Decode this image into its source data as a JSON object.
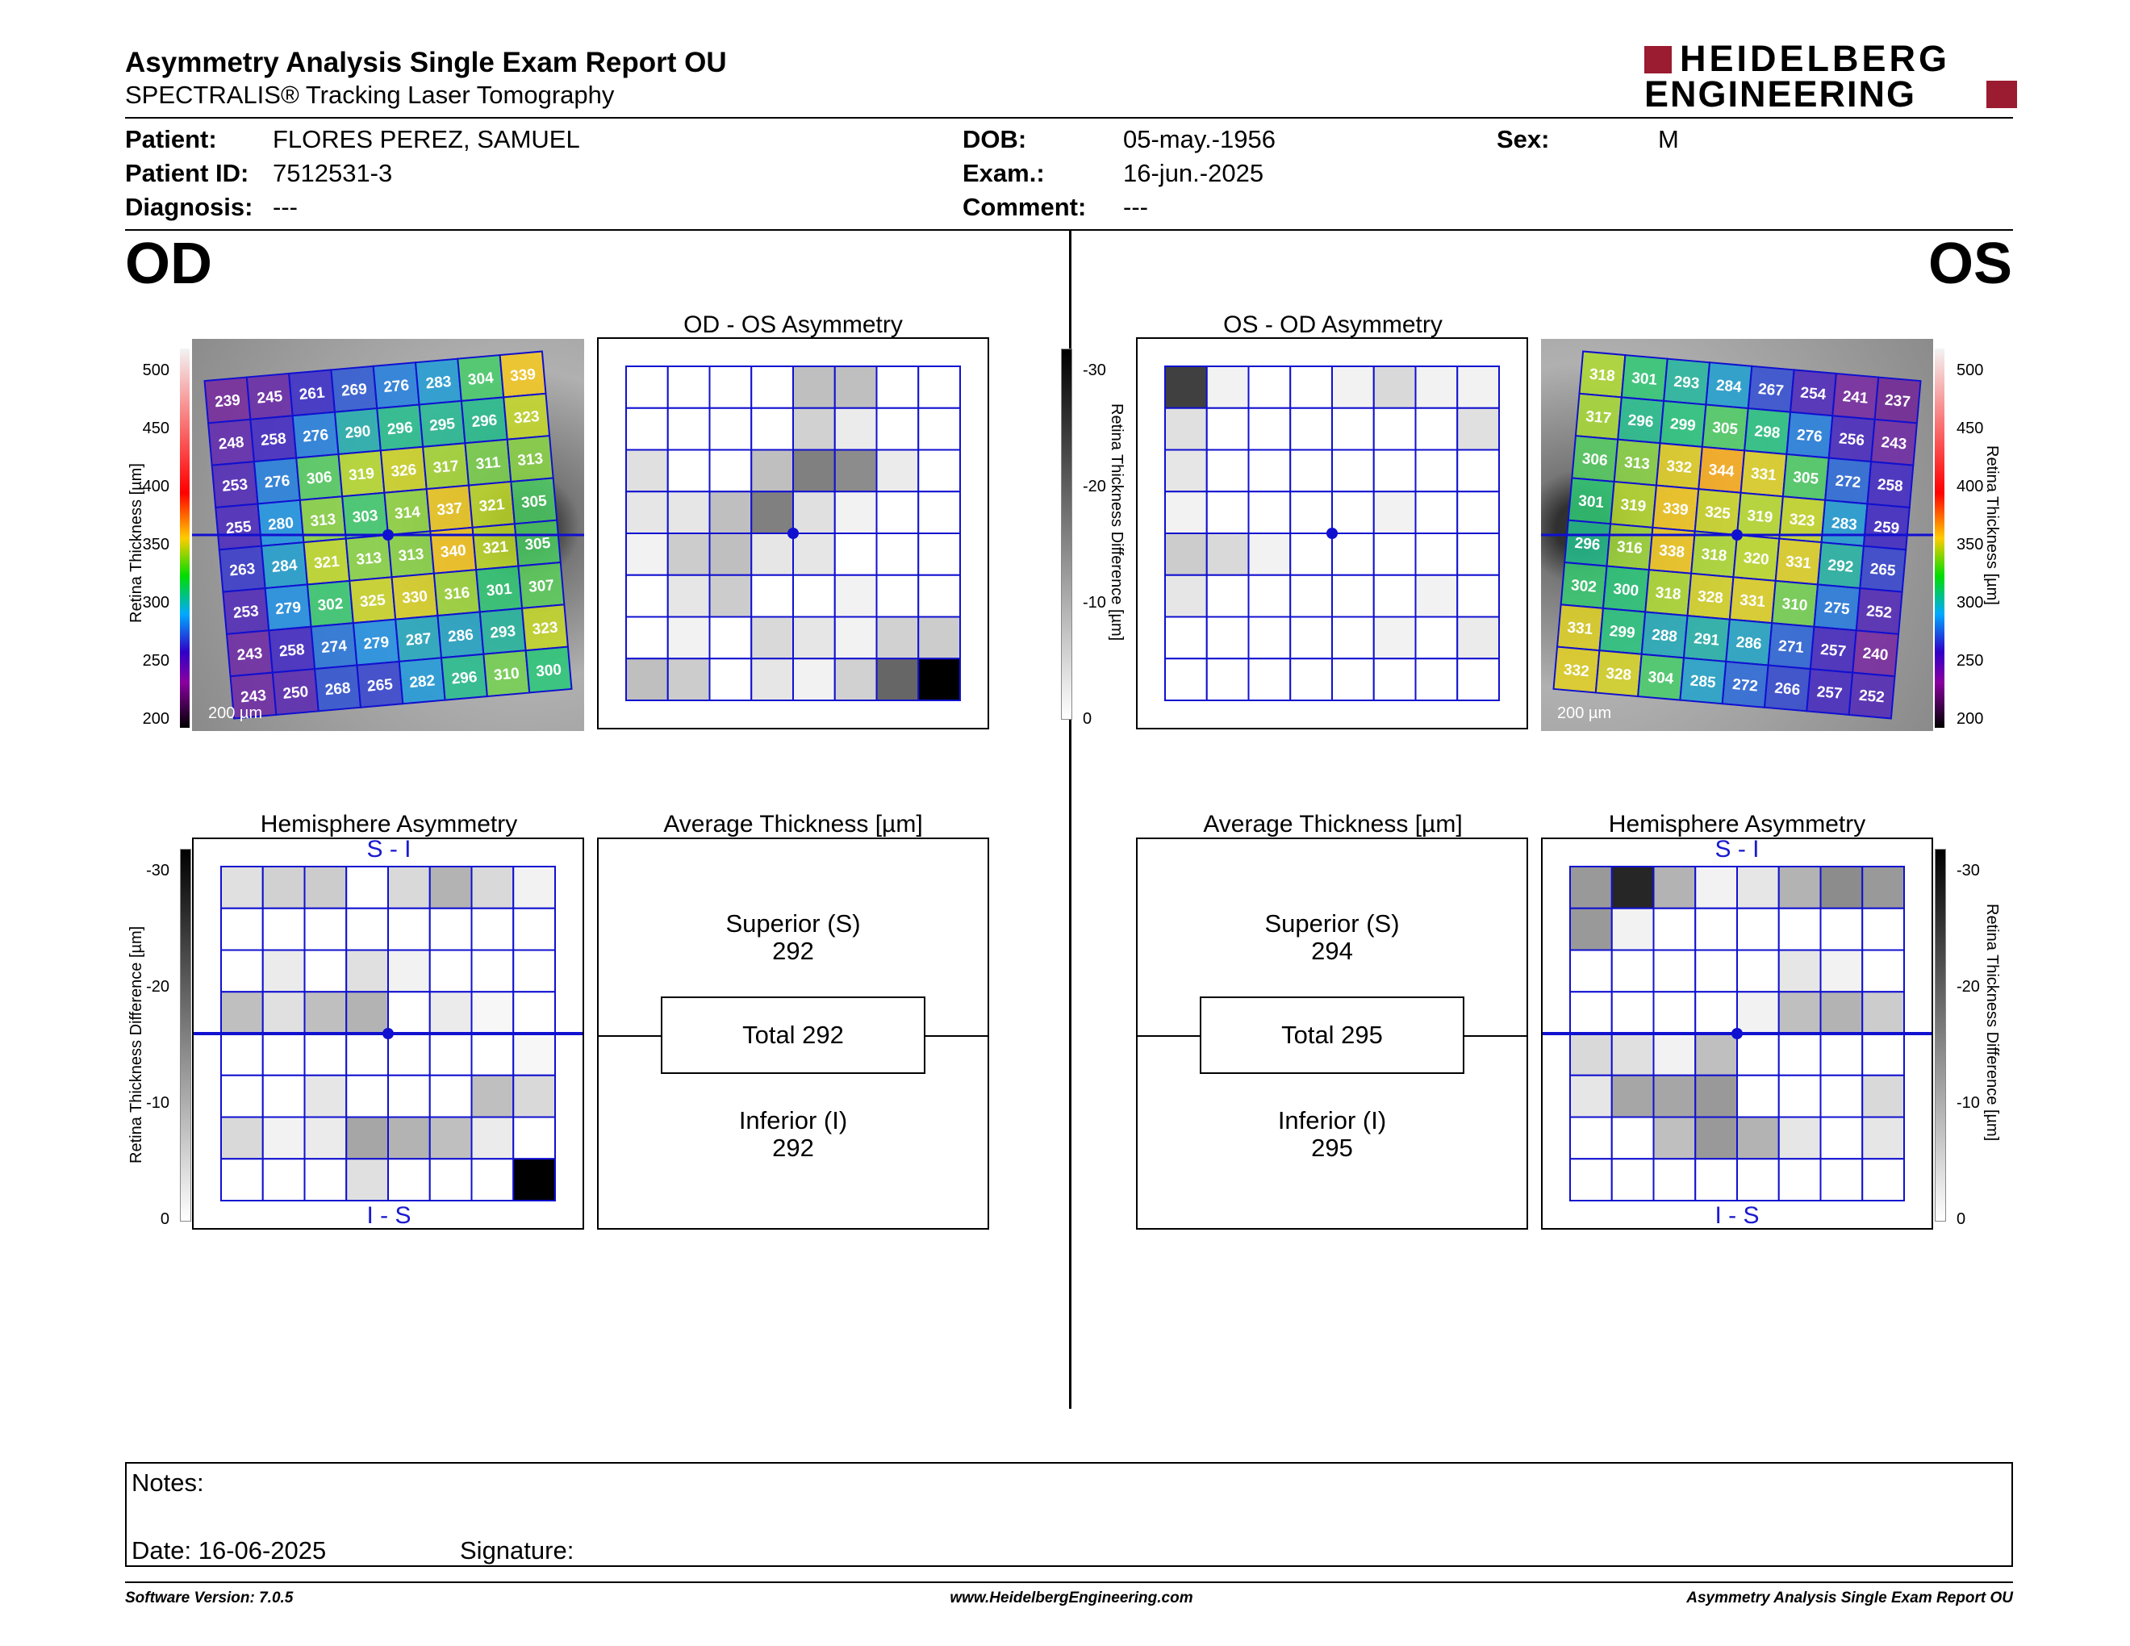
{
  "header": {
    "title": "Asymmetry Analysis Single Exam Report OU",
    "subtitle": "SPECTRALIS® Tracking Laser Tomography",
    "logo_line1": "HEIDELBERG",
    "logo_line2": "ENGINEERING",
    "logo_color": "#9b1b30"
  },
  "patient": {
    "patient_label": "Patient:",
    "patient_value": "FLORES PEREZ, SAMUEL",
    "id_label": "Patient ID:",
    "id_value": "7512531-3",
    "diagnosis_label": "Diagnosis:",
    "diagnosis_value": "---",
    "dob_label": "DOB:",
    "dob_value": "05-may.-1956",
    "exam_label": "Exam.:",
    "exam_value": "16-jun.-2025",
    "comment_label": "Comment:",
    "comment_value": "---",
    "sex_label": "Sex:",
    "sex_value": "M"
  },
  "od": {
    "eye_label": "OD",
    "asym_title": "OD - OS Asymmetry",
    "hemi_title": "Hemisphere Asymmetry",
    "hemi_top": "S - I",
    "hemi_bottom": "I - S",
    "avg_title": "Average Thickness [µm]",
    "superior_label": "Superior (S)",
    "superior_value": "292",
    "total_label": "Total 292",
    "inferior_label": "Inferior (I)",
    "inferior_value": "292",
    "scale_bar": "200 µm",
    "thickness_grid": [
      [
        239,
        245,
        261,
        269,
        276,
        283,
        304,
        339
      ],
      [
        248,
        258,
        276,
        290,
        296,
        295,
        296,
        323
      ],
      [
        253,
        276,
        306,
        319,
        326,
        317,
        311,
        313
      ],
      [
        255,
        280,
        313,
        303,
        314,
        337,
        321,
        305
      ],
      [
        263,
        284,
        321,
        313,
        313,
        340,
        321,
        305
      ],
      [
        253,
        279,
        302,
        325,
        330,
        316,
        301,
        307
      ],
      [
        243,
        258,
        274,
        279,
        287,
        286,
        293,
        323
      ],
      [
        243,
        250,
        268,
        265,
        282,
        296,
        310,
        300
      ]
    ],
    "asym_grid": [
      [
        0,
        0,
        0,
        0,
        0.25,
        0.25,
        0,
        0
      ],
      [
        0,
        0,
        0,
        0,
        0.18,
        0.08,
        0,
        0
      ],
      [
        0.12,
        0,
        0,
        0.25,
        0.5,
        0.45,
        0.08,
        0
      ],
      [
        0.1,
        0.1,
        0.25,
        0.5,
        0.12,
        0.05,
        0,
        0
      ],
      [
        0.05,
        0.2,
        0.25,
        0.1,
        0.1,
        0,
        0,
        0
      ],
      [
        0,
        0.1,
        0.2,
        0,
        0,
        0.05,
        0,
        0
      ],
      [
        0,
        0.05,
        0,
        0.15,
        0.1,
        0.05,
        0.18,
        0.2
      ],
      [
        0.25,
        0.2,
        0,
        0.1,
        0.05,
        0.18,
        0.6,
        1.0
      ]
    ],
    "hemi_grid": [
      [
        0.12,
        0.18,
        0.2,
        0,
        0.15,
        0.3,
        0.15,
        0.05
      ],
      [
        0,
        0,
        0,
        0,
        0,
        0,
        0,
        0
      ],
      [
        0,
        0.08,
        0,
        0.12,
        0.05,
        0,
        0,
        0
      ],
      [
        0.25,
        0.12,
        0.25,
        0.3,
        0,
        0.08,
        0.03,
        0
      ],
      [
        0,
        0,
        0,
        0,
        0,
        0,
        0,
        0.03
      ],
      [
        0,
        0,
        0.1,
        0,
        0,
        0,
        0.25,
        0.15
      ],
      [
        0.15,
        0.05,
        0.08,
        0.35,
        0.3,
        0.25,
        0.08,
        0
      ],
      [
        0,
        0,
        0,
        0.12,
        0,
        0,
        0,
        1.0
      ]
    ]
  },
  "os": {
    "eye_label": "OS",
    "asym_title": "OS - OD Asymmetry",
    "hemi_title": "Hemisphere Asymmetry",
    "hemi_top": "S - I",
    "hemi_bottom": "I - S",
    "avg_title": "Average Thickness [µm]",
    "superior_label": "Superior (S)",
    "superior_value": "294",
    "total_label": "Total 295",
    "inferior_label": "Inferior (I)",
    "inferior_value": "295",
    "scale_bar": "200 µm",
    "thickness_grid": [
      [
        318,
        301,
        293,
        284,
        267,
        254,
        241,
        237
      ],
      [
        317,
        296,
        299,
        305,
        298,
        276,
        256,
        243
      ],
      [
        306,
        313,
        332,
        344,
        331,
        305,
        272,
        258
      ],
      [
        301,
        319,
        339,
        325,
        319,
        323,
        283,
        259
      ],
      [
        296,
        316,
        338,
        318,
        320,
        331,
        292,
        265
      ],
      [
        302,
        300,
        318,
        328,
        331,
        310,
        275,
        252
      ],
      [
        331,
        299,
        288,
        291,
        286,
        271,
        257,
        240
      ],
      [
        332,
        328,
        304,
        285,
        272,
        266,
        257,
        252
      ]
    ],
    "asym_grid": [
      [
        0.75,
        0.05,
        0,
        0,
        0.05,
        0.15,
        0.05,
        0.05
      ],
      [
        0.12,
        0,
        0,
        0,
        0,
        0,
        0,
        0.12
      ],
      [
        0.1,
        0,
        0,
        0,
        0,
        0,
        0,
        0
      ],
      [
        0.05,
        0,
        0,
        0,
        0,
        0.05,
        0,
        0
      ],
      [
        0.2,
        0.15,
        0.05,
        0,
        0,
        0,
        0,
        0
      ],
      [
        0.1,
        0,
        0,
        0,
        0,
        0,
        0.05,
        0
      ],
      [
        0,
        0,
        0,
        0,
        0,
        0.05,
        0,
        0.08
      ],
      [
        0,
        0,
        0,
        0,
        0,
        0,
        0,
        0
      ]
    ],
    "hemi_grid": [
      [
        0.4,
        0.85,
        0.3,
        0.05,
        0.1,
        0.3,
        0.45,
        0.4
      ],
      [
        0.4,
        0.05,
        0,
        0,
        0,
        0,
        0,
        0
      ],
      [
        0,
        0,
        0,
        0,
        0,
        0.1,
        0.05,
        0
      ],
      [
        0,
        0,
        0,
        0,
        0.05,
        0.25,
        0.3,
        0.2
      ],
      [
        0.15,
        0.12,
        0.05,
        0.25,
        0,
        0,
        0,
        0
      ],
      [
        0.1,
        0.35,
        0.35,
        0.4,
        0,
        0,
        0,
        0.15
      ],
      [
        0,
        0,
        0.25,
        0.4,
        0.3,
        0.1,
        0,
        0.1
      ],
      [
        0,
        0,
        0,
        0,
        0,
        0,
        0,
        0
      ]
    ]
  },
  "axes": {
    "thickness_label": "Retina Thickness [µm]",
    "thickness_ticks": [
      "500",
      "450",
      "400",
      "350",
      "300",
      "250",
      "200"
    ],
    "diff_label": "Retina Thickness Difference [µm]",
    "diff_ticks": [
      "-30",
      "-20",
      "-10",
      "0"
    ]
  },
  "notes": {
    "notes_label": "Notes:",
    "date_label": "Date: 16-06-2025",
    "signature_label": "Signature:"
  },
  "footer": {
    "left": "Software Version: 7.0.5",
    "center": "www.HeidelbergEngineering.com",
    "right": "Asymmetry Analysis Single Exam Report OU"
  }
}
